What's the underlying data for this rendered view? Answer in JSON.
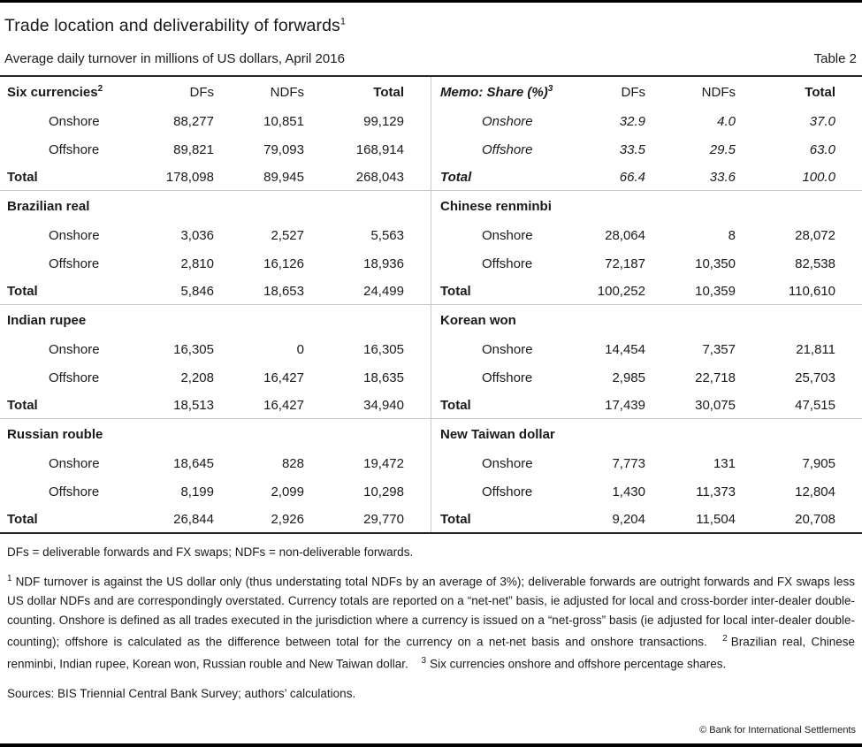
{
  "meta": {
    "title": "Trade location and deliverability of forwards",
    "title_sup": "1",
    "subtitle": "Average daily turnover in millions of US dollars, April 2016",
    "table_label": "Table 2"
  },
  "table": {
    "sections": [
      {
        "left": {
          "name": "Six currencies",
          "sup": "2",
          "cols": [
            "DFs",
            "NDFs",
            "Total"
          ],
          "rows": [
            {
              "label": "Onshore",
              "values": [
                "88,277",
                "10,851",
                "99,129"
              ]
            },
            {
              "label": "Offshore",
              "values": [
                "89,821",
                "79,093",
                "168,914"
              ]
            }
          ],
          "total": {
            "label": "Total",
            "values": [
              "178,098",
              "89,945",
              "268,043"
            ]
          }
        },
        "right": {
          "name": "Memo: Share (%)",
          "sup": "3",
          "italic": true,
          "cols": [
            "DFs",
            "NDFs",
            "Total"
          ],
          "rows": [
            {
              "label": "Onshore",
              "values": [
                "32.9",
                "4.0",
                "37.0"
              ]
            },
            {
              "label": "Offshore",
              "values": [
                "33.5",
                "29.5",
                "63.0"
              ]
            }
          ],
          "total": {
            "label": "Total",
            "values": [
              "66.4",
              "33.6",
              "100.0"
            ]
          }
        }
      },
      {
        "left": {
          "name": "Brazilian real",
          "rows": [
            {
              "label": "Onshore",
              "values": [
                "3,036",
                "2,527",
                "5,563"
              ]
            },
            {
              "label": "Offshore",
              "values": [
                "2,810",
                "16,126",
                "18,936"
              ]
            }
          ],
          "total": {
            "label": "Total",
            "values": [
              "5,846",
              "18,653",
              "24,499"
            ]
          }
        },
        "right": {
          "name": "Chinese renminbi",
          "rows": [
            {
              "label": "Onshore",
              "values": [
                "28,064",
                "8",
                "28,072"
              ]
            },
            {
              "label": "Offshore",
              "values": [
                "72,187",
                "10,350",
                "82,538"
              ]
            }
          ],
          "total": {
            "label": "Total",
            "values": [
              "100,252",
              "10,359",
              "110,610"
            ]
          }
        }
      },
      {
        "left": {
          "name": "Indian rupee",
          "rows": [
            {
              "label": "Onshore",
              "values": [
                "16,305",
                "0",
                "16,305"
              ]
            },
            {
              "label": "Offshore",
              "values": [
                "2,208",
                "16,427",
                "18,635"
              ]
            }
          ],
          "total": {
            "label": "Total",
            "values": [
              "18,513",
              "16,427",
              "34,940"
            ]
          }
        },
        "right": {
          "name": "Korean won",
          "rows": [
            {
              "label": "Onshore",
              "values": [
                "14,454",
                "7,357",
                "21,811"
              ]
            },
            {
              "label": "Offshore",
              "values": [
                "2,985",
                "22,718",
                "25,703"
              ]
            }
          ],
          "total": {
            "label": "Total",
            "values": [
              "17,439",
              "30,075",
              "47,515"
            ]
          }
        }
      },
      {
        "left": {
          "name": "Russian rouble",
          "rows": [
            {
              "label": "Onshore",
              "values": [
                "18,645",
                "828",
                "19,472"
              ]
            },
            {
              "label": "Offshore",
              "values": [
                "8,199",
                "2,099",
                "10,298"
              ]
            }
          ],
          "total": {
            "label": "Total",
            "values": [
              "26,844",
              "2,926",
              "29,770"
            ]
          }
        },
        "right": {
          "name": "New Taiwan dollar",
          "rows": [
            {
              "label": "Onshore",
              "values": [
                "7,773",
                "131",
                "7,905"
              ]
            },
            {
              "label": "Offshore",
              "values": [
                "1,430",
                "11,373",
                "12,804"
              ]
            }
          ],
          "total": {
            "label": "Total",
            "values": [
              "9,204",
              "11,504",
              "20,708"
            ]
          }
        }
      }
    ]
  },
  "footnotes": {
    "abbrev": "DFs = deliverable forwards and FX swaps; NDFs = non-deliverable forwards.",
    "fn1_marker": "1",
    "fn1": "NDF turnover is against the US dollar only (thus understating total NDFs by an average of 3%); deliverable forwards are outright forwards and FX swaps less US dollar NDFs and are correspondingly overstated. Currency totals are reported on a “net-net” basis, ie adjusted for local and cross-border inter-dealer double-counting. Onshore is defined as all trades executed in the jurisdiction where a currency is issued on a “net-gross” basis (ie adjusted for local inter-dealer double-counting); offshore is calculated as the difference between total for the currency on a net-net basis and onshore transactions.",
    "fn2_marker": "2",
    "fn2": "Brazilian real, Chinese renminbi, Indian rupee, Korean won, Russian rouble and New Taiwan dollar.",
    "fn3_marker": "3",
    "fn3": "Six currencies onshore and offshore percentage shares.",
    "sources": "Sources: BIS Triennial Central Bank Survey; authors’ calculations.",
    "copyright": "© Bank for International Settlements"
  },
  "colors": {
    "rule_dark": "#262626",
    "rule_light": "#c9c9c9",
    "rule_edge": "#000000",
    "text": "#1a1a1a"
  }
}
